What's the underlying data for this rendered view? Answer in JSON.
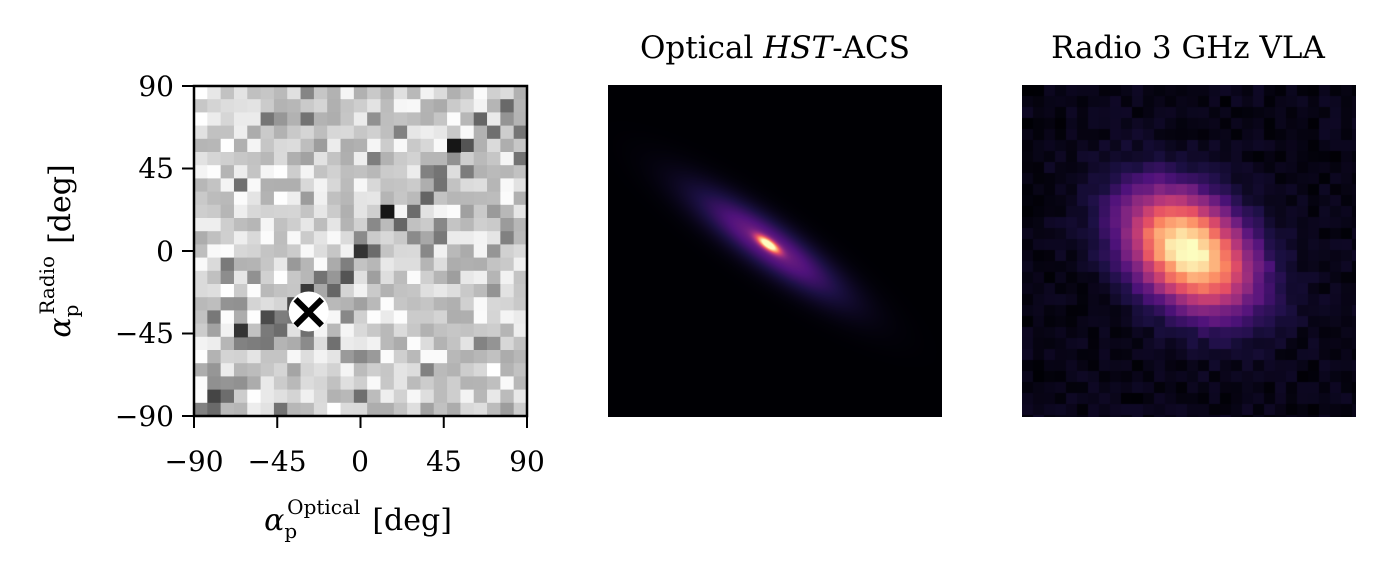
{
  "chart_data": [
    {
      "type": "heatmap",
      "xlabel_symbol": "α",
      "xlabel_sub": "p",
      "xlabel_sup": "Optical",
      "xlabel_unit": "[deg]",
      "ylabel_symbol": "α",
      "ylabel_sub": "p",
      "ylabel_sup": "Radio",
      "ylabel_unit": "[deg]",
      "xlim": [
        -90,
        90
      ],
      "ylim": [
        -90,
        90
      ],
      "x_ticks": [
        -90,
        -45,
        0,
        45,
        90
      ],
      "x_tick_labels": [
        "−90",
        "−45",
        "0",
        "45",
        "90"
      ],
      "y_ticks": [
        90,
        45,
        0,
        -45,
        -90
      ],
      "y_tick_labels": [
        "90",
        "45",
        "0",
        "−45",
        "−90"
      ],
      "marker": {
        "symbol": "×",
        "x": -28,
        "y": -33
      },
      "colormap": "Greys",
      "grid": false
    },
    {
      "type": "image",
      "title_prefix": "Optical ",
      "title_italic": "HST",
      "title_suffix": "-ACS",
      "colormap": "magma",
      "source": {
        "peak_x_frac": 0.48,
        "peak_y_frac": 0.48,
        "angle_deg": -35,
        "compact": true
      }
    },
    {
      "type": "image",
      "title": "Radio 3 GHz VLA",
      "colormap": "magma",
      "source": {
        "peak_x_frac": 0.5,
        "peak_y_frac": 0.5,
        "angle_deg": -40,
        "compact": false
      }
    }
  ]
}
